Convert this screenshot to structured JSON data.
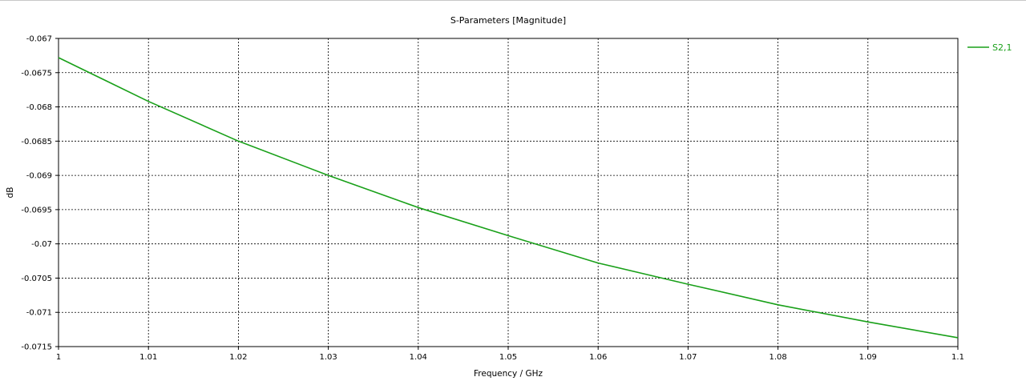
{
  "chart_data": {
    "type": "line",
    "title": "S-Parameters [Magnitude]",
    "xlabel": "Frequency / GHz",
    "ylabel": "dB",
    "xlim": [
      1,
      1.1
    ],
    "ylim": [
      -0.0715,
      -0.067
    ],
    "x_ticks": [
      "1",
      "1.01",
      "1.02",
      "1.03",
      "1.04",
      "1.05",
      "1.06",
      "1.07",
      "1.08",
      "1.09",
      "1.1"
    ],
    "y_ticks": [
      "-0.067",
      "-0.0675",
      "-0.068",
      "-0.0685",
      "-0.069",
      "-0.0695",
      "-0.07",
      "-0.0705",
      "-0.071",
      "-0.0715"
    ],
    "grid": true,
    "legend_position": "top-right-outside",
    "series": [
      {
        "name": "S2,1",
        "color": "#19a019",
        "x": [
          1.0,
          1.01,
          1.02,
          1.03,
          1.04,
          1.05,
          1.06,
          1.07,
          1.08,
          1.09,
          1.1
        ],
        "y": [
          -0.06728,
          -0.06792,
          -0.0685,
          -0.069,
          -0.06947,
          -0.06988,
          -0.07028,
          -0.07059,
          -0.07089,
          -0.07114,
          -0.07137
        ]
      }
    ]
  }
}
